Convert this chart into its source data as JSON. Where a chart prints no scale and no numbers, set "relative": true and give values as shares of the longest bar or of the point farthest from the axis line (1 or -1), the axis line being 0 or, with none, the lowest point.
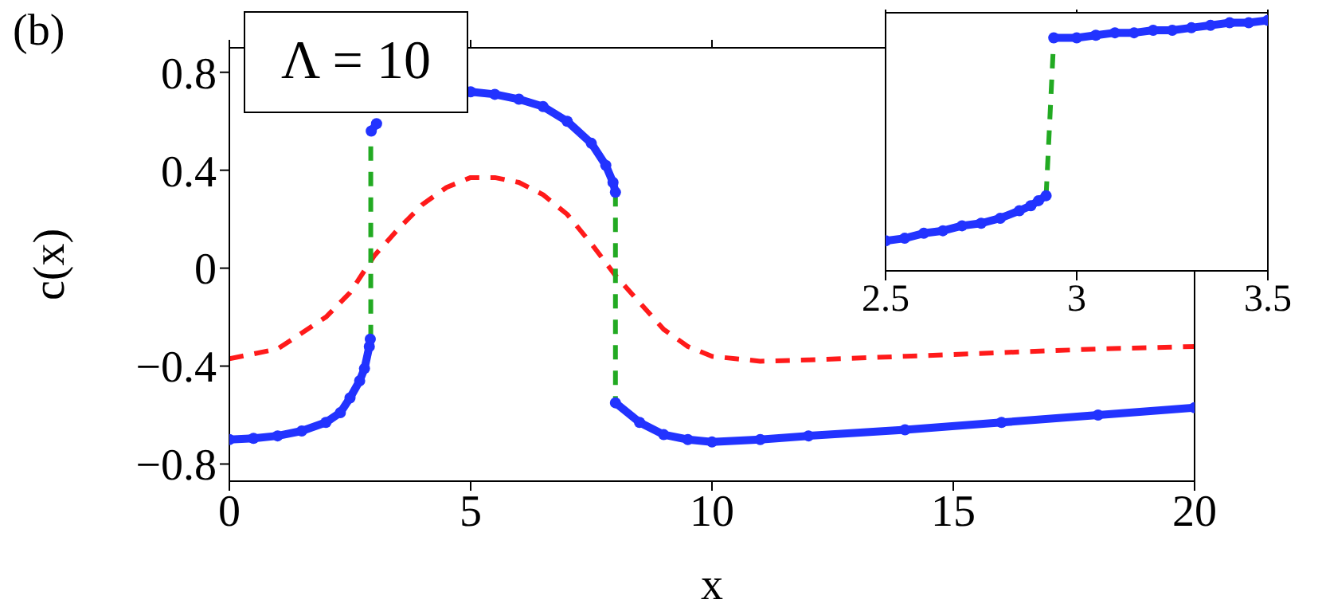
{
  "chart_data": [
    {
      "type": "line",
      "xlabel": "x",
      "ylabel": "c(x)",
      "xlim": [
        0,
        20
      ],
      "ylim": [
        -0.87,
        0.9
      ],
      "xticks": [
        0,
        5,
        10,
        15,
        20
      ],
      "yticks": [
        {
          "value": -0.8,
          "label": "−0.8"
        },
        {
          "value": -0.4,
          "label": "−0.4"
        },
        0,
        0.4,
        0.8
      ],
      "annotations": [
        "(b)",
        "Λ = 10"
      ],
      "series": [
        {
          "color": "#2233ff",
          "marker": "circle",
          "line_style": "solid",
          "x": [
            0,
            0.5,
            1,
            1.5,
            2,
            2.3,
            2.5,
            2.7,
            2.8,
            2.9,
            2.92
          ],
          "values": [
            -0.7,
            -0.695,
            -0.685,
            -0.665,
            -0.63,
            -0.59,
            -0.53,
            -0.46,
            -0.41,
            -0.32,
            -0.29
          ]
        },
        {
          "color": "#2233ff",
          "marker": "circle",
          "line_style": "solid",
          "x": [
            2.94,
            3.05,
            3.5,
            4,
            4.5,
            5,
            5.5,
            6,
            6.5,
            7,
            7.5,
            7.8,
            7.95,
            8.0
          ],
          "values": [
            0.56,
            0.59,
            null,
            null,
            null,
            0.72,
            0.71,
            0.69,
            0.66,
            0.6,
            0.51,
            0.42,
            0.35,
            0.31
          ]
        },
        {
          "color": "#2233ff",
          "marker": "circle",
          "line_style": "solid",
          "x": [
            8.0,
            8.5,
            9,
            9.5,
            10,
            11,
            12,
            14,
            16,
            18,
            20
          ],
          "values": [
            -0.55,
            -0.63,
            -0.68,
            -0.7,
            -0.71,
            -0.7,
            -0.685,
            -0.66,
            -0.63,
            -0.6,
            -0.57
          ]
        },
        {
          "color": "#ff1a1a",
          "marker": "none",
          "line_style": "dashed",
          "x": [
            0,
            1,
            2,
            2.5,
            3,
            3.5,
            4,
            4.5,
            5,
            5.5,
            6,
            6.5,
            7,
            7.5,
            8,
            8.5,
            9,
            9.5,
            10,
            11,
            12,
            14,
            16,
            18,
            20
          ],
          "values": [
            -0.37,
            -0.33,
            -0.2,
            -0.1,
            0.05,
            0.16,
            0.26,
            0.33,
            0.37,
            0.37,
            0.35,
            0.3,
            0.22,
            0.1,
            -0.03,
            -0.14,
            -0.25,
            -0.32,
            -0.36,
            -0.38,
            -0.375,
            -0.36,
            -0.345,
            -0.33,
            -0.32
          ]
        },
        {
          "color": "#22aa22",
          "marker": "none",
          "line_style": "dashed",
          "x": [
            2.93,
            2.93
          ],
          "values": [
            -0.29,
            0.56
          ]
        },
        {
          "color": "#22aa22",
          "marker": "none",
          "line_style": "dashed",
          "x": [
            8.0,
            8.0
          ],
          "values": [
            0.31,
            -0.55
          ]
        }
      ]
    },
    {
      "type": "line",
      "relative": true,
      "xlim": [
        2.5,
        3.5
      ],
      "xticks": [
        2.5,
        3,
        3.5
      ],
      "series": [
        {
          "color": "#2233ff",
          "marker": "circle",
          "line_style": "solid",
          "x": [
            2.5,
            2.55,
            2.6,
            2.65,
            2.7,
            2.75,
            2.8,
            2.85,
            2.88,
            2.9,
            2.92
          ],
          "values": [
            0.12,
            0.13,
            0.15,
            0.16,
            0.18,
            0.19,
            0.21,
            0.24,
            0.26,
            0.28,
            0.3
          ]
        },
        {
          "color": "#2233ff",
          "marker": "circle",
          "line_style": "solid",
          "x": [
            2.94,
            3.0,
            3.05,
            3.1,
            3.15,
            3.2,
            3.25,
            3.3,
            3.35,
            3.4,
            3.45,
            3.5
          ],
          "values": [
            0.93,
            0.93,
            0.94,
            0.95,
            0.95,
            0.96,
            0.96,
            0.97,
            0.98,
            0.99,
            0.99,
            1
          ]
        },
        {
          "color": "#22aa22",
          "marker": "none",
          "line_style": "dashed",
          "x": [
            2.92,
            2.94
          ],
          "values": [
            0.3,
            0.93
          ]
        }
      ]
    }
  ]
}
